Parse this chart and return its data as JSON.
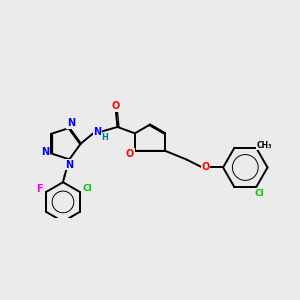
{
  "bg_color": "#ebebeb",
  "bond_color": "#000000",
  "line_width": 1.4,
  "atoms": {
    "F": "#ff00ff",
    "Cl": "#00cc00",
    "N": "#0000ff",
    "O": "#ff0000",
    "C": "#000000",
    "H": "#008080"
  },
  "lw_inner": 0.9
}
